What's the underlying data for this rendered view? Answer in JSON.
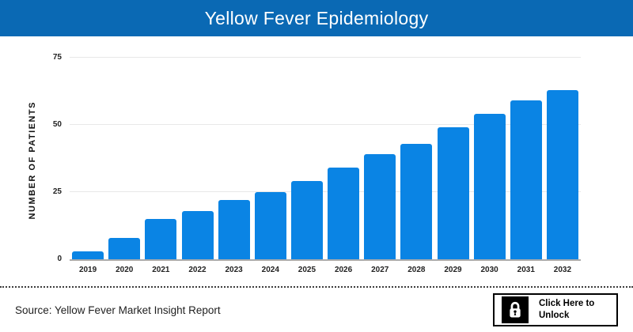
{
  "header": {
    "title": "Yellow Fever Epidemiology",
    "bg_color": "#0a69b4",
    "text_color": "#ffffff"
  },
  "chart_data": {
    "type": "bar",
    "title": "Yellow Fever Epidemiology",
    "xlabel": "",
    "ylabel": "NUMBER OF PATIENTS",
    "categories": [
      "2019",
      "2020",
      "2021",
      "2022",
      "2023",
      "2024",
      "2025",
      "2026",
      "2027",
      "2028",
      "2029",
      "2030",
      "2031",
      "2032"
    ],
    "values": [
      3,
      8,
      15,
      18,
      22,
      25,
      29,
      34,
      39,
      43,
      49,
      54,
      59,
      63
    ],
    "yticks": [
      0,
      25,
      50,
      75
    ],
    "ylim": [
      0,
      75
    ],
    "grid": true,
    "legend": "none",
    "bar_color": "#0a84e4",
    "gridline_color": "#e8e8e8",
    "axis_line_color": "#ababab"
  },
  "footer": {
    "source": "Source: Yellow Fever Market Insight Report",
    "unlock_button": {
      "label": "Click Here to Unlock",
      "icon": "lock-icon"
    }
  }
}
